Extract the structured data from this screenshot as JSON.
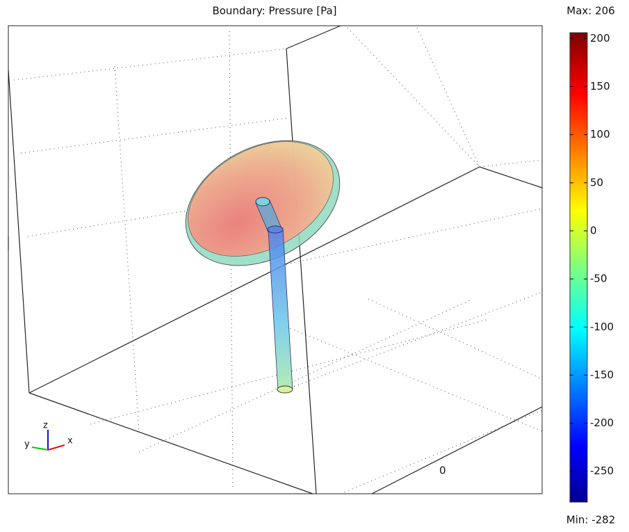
{
  "chart_data": {
    "type": "surface3d",
    "title": "Boundary: Pressure [Pa]",
    "colormap": "jet",
    "clim": [
      {
        "value": -282,
        "label": "Min: -282"
      },
      {
        "value": 206,
        "label": "Max: 206"
      }
    ],
    "cticks": [
      -250,
      -200,
      -150,
      -100,
      -50,
      0,
      50,
      100,
      150,
      200
    ],
    "axis_ticks": [
      0
    ],
    "triad": [
      "x",
      "y",
      "z"
    ]
  }
}
